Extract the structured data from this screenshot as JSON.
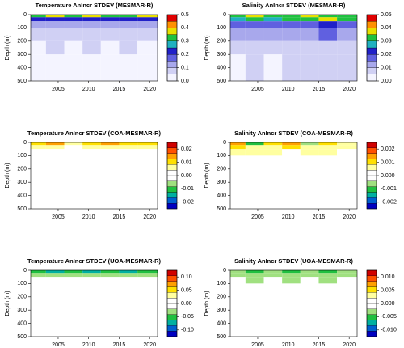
{
  "chart_data": [
    {
      "type": "contour",
      "title": "Temperature AnIncr STDEV (MESMAR-R)",
      "ylabel": "Depth (m)",
      "xlim": [
        2000.5,
        2021.3
      ],
      "xticks": [
        2005,
        2010,
        2015,
        2020
      ],
      "ylim": [
        500,
        0
      ],
      "yticks": [
        0,
        100,
        200,
        300,
        400,
        500
      ],
      "x": [
        2000.5,
        2003,
        2006,
        2009,
        2012,
        2015,
        2018,
        2021.3
      ],
      "y": [
        0,
        20,
        50,
        100,
        200,
        300,
        500
      ],
      "field": [
        [
          0.3,
          0.35,
          0.3,
          0.35,
          0.3,
          0.3,
          0.35
        ],
        [
          0.2,
          0.22,
          0.2,
          0.22,
          0.2,
          0.22,
          0.2
        ],
        [
          0.1,
          0.12,
          0.1,
          0.12,
          0.1,
          0.12,
          0.1
        ],
        [
          0.06,
          0.06,
          0.05,
          0.06,
          0.06,
          0.05,
          0.06
        ],
        [
          0.04,
          0.05,
          0.04,
          0.05,
          0.04,
          0.05,
          0.04
        ],
        [
          0.02,
          0.04,
          0.03,
          0.04,
          0.03,
          0.04,
          0.03
        ]
      ],
      "zlim": [
        0,
        0.5
      ],
      "zticks": [
        {
          "value": 0,
          "label": "0.0"
        },
        0.1,
        0.2,
        0.3,
        0.4,
        0.5
      ],
      "colors": [
        "#f4f4ff",
        "#d0d0f4",
        "#a8a8ec",
        "#6060e0",
        "#2020c8",
        "#20b0c0",
        "#20c040",
        "#e8e000",
        "#ff9000",
        "#e00000"
      ]
    },
    {
      "type": "contour",
      "title": "Salinity AnIncr STDEV (MESMAR-R)",
      "ylabel": "Depth (m)",
      "xlim": [
        2000.5,
        2021.3
      ],
      "xticks": [
        2005,
        2010,
        2015,
        2020
      ],
      "ylim": [
        500,
        0
      ],
      "yticks": [
        0,
        100,
        200,
        300,
        400,
        500
      ],
      "x": [
        2000.5,
        2003,
        2006,
        2009,
        2012,
        2015,
        2018,
        2021.3
      ],
      "y": [
        0,
        20,
        50,
        100,
        200,
        300,
        500
      ],
      "field": [
        [
          0.03,
          0.035,
          0.03,
          0.03,
          0.035,
          0.03,
          0.03
        ],
        [
          0.025,
          0.03,
          0.025,
          0.03,
          0.03,
          0.035,
          0.03
        ],
        [
          0.018,
          0.02,
          0.018,
          0.02,
          0.02,
          0.022,
          0.02
        ],
        [
          0.012,
          0.013,
          0.012,
          0.013,
          0.013,
          0.015,
          0.014
        ],
        [
          0.007,
          0.008,
          0.007,
          0.008,
          0.008,
          0.008,
          0.008
        ],
        [
          0.005,
          0.006,
          0.005,
          0.006,
          0.006,
          0.006,
          0.006
        ]
      ],
      "zlim": [
        0,
        0.05
      ],
      "zticks": [
        {
          "value": 0,
          "label": "0.00"
        },
        0.01,
        0.02,
        0.03,
        0.04,
        0.05
      ],
      "colors": [
        "#f4f4ff",
        "#d0d0f4",
        "#a8a8ec",
        "#6060e0",
        "#2020c8",
        "#20b0c0",
        "#20c040",
        "#e8e000",
        "#ff9000",
        "#e00000"
      ]
    },
    {
      "type": "contour",
      "title": "Temperature AnIncr STDEV (COA-MESMAR-R)",
      "ylabel": "Depth (m)",
      "xlim": [
        2000.5,
        2021.3
      ],
      "xticks": [
        2005,
        2010,
        2015,
        2020
      ],
      "ylim": [
        500,
        0
      ],
      "yticks": [
        0,
        100,
        200,
        300,
        400,
        500
      ],
      "x": [
        2000.5,
        2003,
        2006,
        2009,
        2012,
        2015,
        2018,
        2021.3
      ],
      "y": [
        0,
        20,
        50,
        100,
        200,
        300,
        500
      ],
      "field": [
        [
          0.01,
          0.015,
          0.005,
          0.01,
          0.015,
          0.01,
          0.01
        ],
        [
          0.005,
          0.005,
          0.003,
          0.005,
          0.005,
          0.005,
          0.005
        ],
        [
          0.003,
          0.003,
          0.002,
          0.003,
          0.003,
          0.003,
          0.003
        ],
        [
          0.002,
          0.002,
          0.001,
          0.002,
          0.002,
          0.002,
          0.002
        ],
        [
          0.001,
          0.001,
          0.001,
          0.001,
          0.001,
          0.001,
          0.001
        ],
        [
          0,
          0.001,
          0,
          0.001,
          0,
          0.001,
          0
        ]
      ],
      "zlim": [
        -0.025,
        0.025
      ],
      "zticks": [
        -0.02,
        -0.01,
        {
          "value": 0,
          "label": "0.00"
        },
        0.01,
        0.02
      ],
      "colors": [
        "#0000c0",
        "#0060d0",
        "#00b0a0",
        "#20c040",
        "#a0e080",
        "#ffffff",
        "#ffffff",
        "#ffffa0",
        "#ffe000",
        "#ffa000",
        "#ff5000",
        "#d00000"
      ]
    },
    {
      "type": "contour",
      "title": "Salinity AnIncr STDEV (COA-MESMAR-R)",
      "ylabel": "Depth (m)",
      "xlim": [
        2000.5,
        2021.3
      ],
      "xticks": [
        2005,
        2010,
        2015,
        2020
      ],
      "ylim": [
        500,
        0
      ],
      "yticks": [
        0,
        100,
        200,
        300,
        400,
        500
      ],
      "x": [
        2000.5,
        2003,
        2006,
        2009,
        2012,
        2015,
        2018,
        2021.3
      ],
      "y": [
        0,
        20,
        50,
        100,
        200,
        300,
        500
      ],
      "field": [
        [
          0.0015,
          -0.001,
          0.001,
          0.0015,
          -0.0005,
          0.001,
          0.0005
        ],
        [
          0.001,
          0.0005,
          0.0008,
          0.001,
          0.0005,
          0.0008,
          0.0005
        ],
        [
          0.0008,
          0.0005,
          0.0006,
          0.0004,
          0.0006,
          0.0005,
          0.0003
        ],
        [
          0.0003,
          -0.0003,
          0.0003,
          0.0002,
          -0.0003,
          0.0003,
          0.0002
        ],
        [
          0.0002,
          0.0002,
          0.0001,
          0.0002,
          0.0001,
          0.0001,
          0.0001
        ],
        [
          0.0001,
          0,
          0.0001,
          0,
          0.0001,
          0,
          0
        ]
      ],
      "zlim": [
        -0.0025,
        0.0025
      ],
      "zticks": [
        -0.002,
        -0.001,
        {
          "value": 0,
          "label": "0.000"
        },
        0.001,
        0.002
      ],
      "colors": [
        "#0000c0",
        "#0060d0",
        "#00b0a0",
        "#20c040",
        "#a0e080",
        "#ffffff",
        "#ffffff",
        "#ffffa0",
        "#ffe000",
        "#ffa000",
        "#ff5000",
        "#d00000"
      ]
    },
    {
      "type": "contour",
      "title": "Temperature AnIncr STDEV (UOA-MESMAR-R)",
      "ylabel": "Depth (m)",
      "xlim": [
        2000.5,
        2021.3
      ],
      "xticks": [
        2005,
        2010,
        2015,
        2020
      ],
      "ylim": [
        500,
        0
      ],
      "yticks": [
        0,
        100,
        200,
        300,
        400,
        500
      ],
      "x": [
        2000.5,
        2003,
        2006,
        2009,
        2012,
        2015,
        2018,
        2021.3
      ],
      "y": [
        0,
        20,
        50,
        100,
        200,
        300,
        500
      ],
      "field": [
        [
          -0.06,
          -0.08,
          -0.06,
          -0.07,
          -0.06,
          -0.07,
          -0.06
        ],
        [
          -0.03,
          -0.04,
          -0.03,
          -0.04,
          -0.03,
          -0.04,
          -0.03
        ],
        [
          -0.015,
          -0.02,
          -0.015,
          -0.02,
          -0.015,
          -0.02,
          -0.015
        ],
        [
          -0.005,
          -0.01,
          -0.005,
          -0.01,
          -0.005,
          -0.01,
          -0.005
        ],
        [
          0,
          -0.005,
          0,
          -0.005,
          0,
          -0.005,
          0
        ],
        [
          0,
          0,
          0,
          0,
          0,
          0,
          0
        ]
      ],
      "zlim": [
        -0.125,
        0.125
      ],
      "zticks": [
        {
          "value": -0.1,
          "label": "-0.10"
        },
        {
          "value": -0.05,
          "label": "-0.05"
        },
        {
          "value": 0,
          "label": "0.00"
        },
        {
          "value": 0.05,
          "label": "0.05"
        },
        {
          "value": 0.1,
          "label": "0.10"
        }
      ],
      "colors": [
        "#0000c0",
        "#0060d0",
        "#00b0a0",
        "#20c040",
        "#a0e080",
        "#ffffff",
        "#ffffff",
        "#ffffa0",
        "#ffe000",
        "#ffa000",
        "#ff5000",
        "#d00000"
      ]
    },
    {
      "type": "contour",
      "title": "Salinity AnIncr STDEV (UOA-MESMAR-R)",
      "ylabel": "Depth (m)",
      "xlim": [
        2000.5,
        2021.3
      ],
      "xticks": [
        2005,
        2010,
        2015,
        2020
      ],
      "ylim": [
        500,
        0
      ],
      "yticks": [
        0,
        100,
        200,
        300,
        400,
        500
      ],
      "x": [
        2000.5,
        2003,
        2006,
        2009,
        2012,
        2015,
        2018,
        2021.3
      ],
      "y": [
        0,
        20,
        50,
        100,
        200,
        300,
        500
      ],
      "field": [
        [
          -0.004,
          -0.005,
          -0.004,
          -0.005,
          -0.004,
          -0.005,
          -0.004
        ],
        [
          -0.003,
          -0.004,
          -0.003,
          -0.004,
          -0.003,
          -0.004,
          -0.003
        ],
        [
          -0.002,
          -0.003,
          -0.002,
          -0.003,
          -0.002,
          -0.003,
          -0.002
        ],
        [
          -0.0015,
          -0.0015,
          -0.0015,
          -0.002,
          -0.0015,
          -0.0015,
          -0.0015
        ],
        [
          -0.001,
          -0.001,
          -0.001,
          -0.001,
          -0.001,
          -0.001,
          -0.001
        ],
        [
          -0.0005,
          -0.0005,
          -0.0005,
          -0.0005,
          -0.0005,
          -0.0005,
          -0.0005
        ]
      ],
      "zlim": [
        -0.0125,
        0.0125
      ],
      "zticks": [
        {
          "value": -0.01,
          "label": "-0.010"
        },
        {
          "value": -0.005,
          "label": "-0.005"
        },
        {
          "value": 0,
          "label": "0.000"
        },
        {
          "value": 0.005,
          "label": "0.005"
        },
        {
          "value": 0.01,
          "label": "0.010"
        }
      ],
      "colors": [
        "#0000c0",
        "#0060d0",
        "#00b0a0",
        "#20c040",
        "#a0e080",
        "#ffffff",
        "#ffffff",
        "#ffffa0",
        "#ffe000",
        "#ffa000",
        "#ff5000",
        "#d00000"
      ]
    }
  ]
}
